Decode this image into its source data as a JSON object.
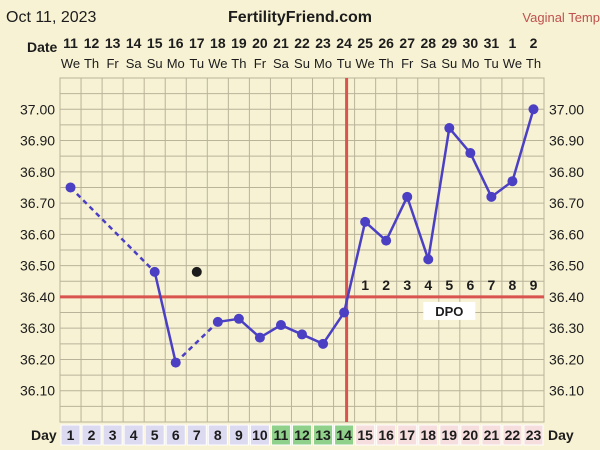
{
  "header": {
    "date": "Oct 11, 2023",
    "site": "FertilityFriend.com",
    "temp_type": "Vaginal Temp"
  },
  "labels": {
    "date_row": "Date",
    "day_row": "Day",
    "dpo": "DPO"
  },
  "colors": {
    "background": "#f7f2d3",
    "grid": "#b9b39a",
    "line": "#4b3fc4",
    "coverline": "#d9534f",
    "fertile_cell": "#8fd18a",
    "luteal_cell": "#f6dede",
    "follicular_cell": "#dcdaf0",
    "excluded_point": "#1c1c1c"
  },
  "chart_data": {
    "type": "line",
    "dates": [
      "11",
      "12",
      "13",
      "14",
      "15",
      "16",
      "17",
      "18",
      "19",
      "20",
      "21",
      "22",
      "23",
      "24",
      "25",
      "26",
      "27",
      "28",
      "29",
      "30",
      "31",
      "1",
      "2"
    ],
    "weekdays": [
      "We",
      "Th",
      "Fr",
      "Sa",
      "Su",
      "Mo",
      "Tu",
      "We",
      "Th",
      "Fr",
      "Sa",
      "Su",
      "Mo",
      "Tu",
      "We",
      "Th",
      "Fr",
      "Sa",
      "Su",
      "Mo",
      "Tu",
      "We",
      "Th"
    ],
    "cycle_days": [
      1,
      2,
      3,
      4,
      5,
      6,
      7,
      8,
      9,
      10,
      11,
      12,
      13,
      14,
      15,
      16,
      17,
      18,
      19,
      20,
      21,
      22,
      23
    ],
    "temperatures": [
      36.75,
      null,
      null,
      null,
      36.48,
      36.19,
      null,
      36.32,
      36.33,
      36.27,
      36.31,
      36.28,
      36.25,
      36.35,
      36.64,
      36.58,
      36.72,
      36.52,
      36.94,
      36.86,
      36.72,
      36.77,
      37.0
    ],
    "excluded": [
      {
        "day": 7,
        "value": 36.48
      }
    ],
    "missing_gap_days": [
      [
        1,
        5
      ],
      [
        6,
        8
      ]
    ],
    "coverline": 36.4,
    "ovulation_day": 14,
    "dpo_labels": [
      "1",
      "2",
      "3",
      "4",
      "5",
      "6",
      "7",
      "8",
      "9"
    ],
    "fertile_days": [
      11,
      12,
      13,
      14
    ],
    "yticks": [
      "36.10",
      "36.20",
      "36.30",
      "36.40",
      "36.50",
      "36.60",
      "36.70",
      "36.80",
      "36.90",
      "37.00"
    ],
    "ylim": [
      36.0,
      37.1
    ]
  }
}
